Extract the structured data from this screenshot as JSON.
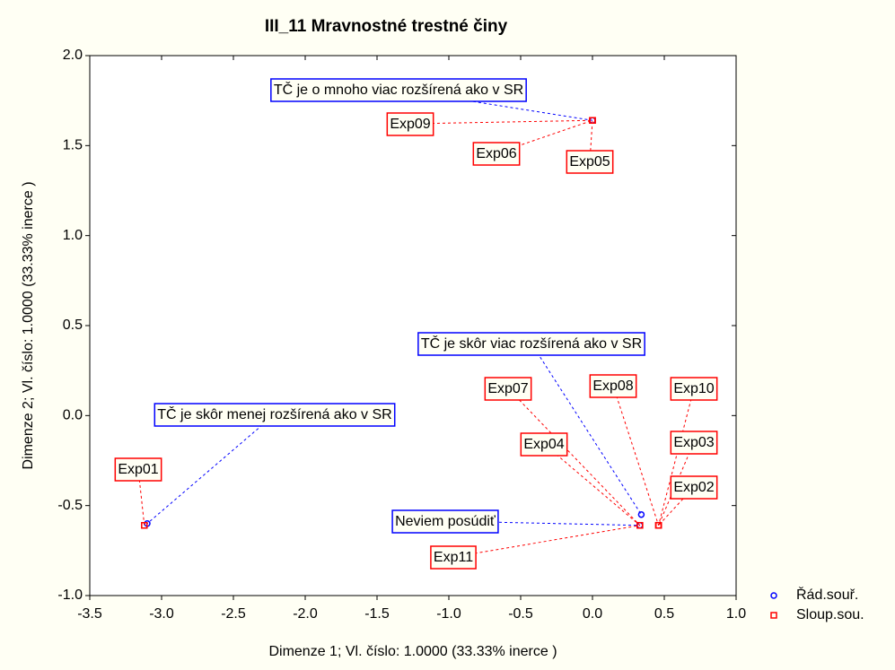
{
  "chart_data": {
    "type": "scatter",
    "title": "III_11 Mravnostné trestné činy",
    "xlabel": "Dimenze   1; Vl. číslo: 1.0000 (33.33% inerce    )",
    "ylabel": "Dimenze   2; Vl. číslo: 1.0000 (33.33% inerce    )",
    "xlim": [
      -3.5,
      1.0
    ],
    "ylim": [
      -1.0,
      2.0
    ],
    "xticks": [
      -3.5,
      {
        "value": -3.0,
        "label": "-3.0"
      },
      -2.5,
      {
        "value": -2.0,
        "label": "-2.0"
      },
      -1.5,
      {
        "value": -1.0,
        "label": "-1.0"
      },
      -0.5,
      {
        "value": 0.0,
        "label": "0.0"
      },
      0.5,
      {
        "value": 1.0,
        "label": "1.0"
      }
    ],
    "yticks": [
      {
        "value": -1.0,
        "label": "-1.0"
      },
      -0.5,
      {
        "value": 0.0,
        "label": "0.0"
      },
      0.5,
      {
        "value": 1.0,
        "label": "1.0"
      },
      1.5,
      {
        "value": 2.0,
        "label": "2.0"
      }
    ],
    "legend": "right",
    "series": [
      {
        "name": "Řád.souř.",
        "color": "#0000ff",
        "marker": "circle",
        "labels": [
          "TČ je o mnoho viac rozšírená ako v SR",
          "TČ je skôr viac rozšírená ako v SR",
          "TČ je skôr menej rozšírená ako v SR",
          "Neviem posúdiť"
        ],
        "x": [
          0.0,
          0.34,
          -3.1,
          0.33
        ],
        "values": [
          1.64,
          -0.55,
          -0.6,
          -0.61
        ]
      },
      {
        "name": "Sloup.sou.",
        "color": "#ff0000",
        "marker": "square",
        "labels": [
          "Exp01",
          "Exp02",
          "Exp03",
          "Exp04",
          "Exp05",
          "Exp06",
          "Exp07",
          "Exp08",
          "Exp09",
          "Exp10",
          "Exp11"
        ],
        "x": [
          -3.12,
          0.46,
          0.46,
          0.33,
          0.0,
          0.0,
          0.33,
          0.46,
          0.0,
          0.46,
          0.33
        ],
        "values": [
          -0.61,
          -0.61,
          -0.61,
          -0.61,
          1.64,
          1.64,
          -0.61,
          -0.61,
          1.64,
          -0.61,
          -0.61
        ]
      }
    ]
  }
}
